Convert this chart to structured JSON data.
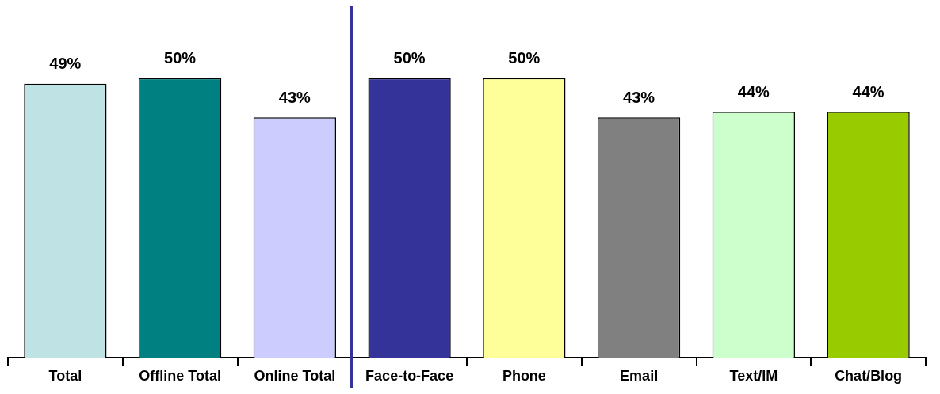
{
  "chart_data": {
    "type": "bar",
    "categories": [
      "Total",
      "Offline Total",
      "Online Total",
      "Face-to-Face",
      "Phone",
      "Email",
      "Text/IM",
      "Chat/Blog"
    ],
    "values": [
      49,
      50,
      43,
      50,
      50,
      43,
      44,
      44
    ],
    "colors": [
      "#bfe2e4",
      "#008080",
      "#ccccff",
      "#333399",
      "#ffff99",
      "#808080",
      "#ccffcc",
      "#99cc00"
    ],
    "value_labels": [
      "49%",
      "50%",
      "43%",
      "50%",
      "50%",
      "43%",
      "44%",
      "44%"
    ],
    "grid": false,
    "legend": false
  }
}
